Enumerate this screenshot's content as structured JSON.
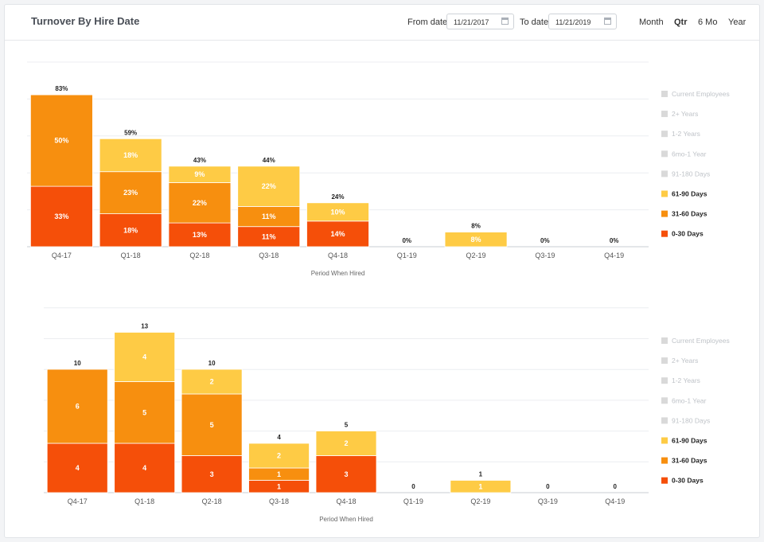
{
  "header": {
    "title": "Turnover By Hire Date",
    "from_label": "From date",
    "from_value": "11/21/2017",
    "to_label": "To date",
    "to_value": "11/21/2019",
    "periods": [
      "Month",
      "Qtr",
      "6 Mo",
      "Year"
    ],
    "active_period": "Qtr"
  },
  "legend": [
    {
      "label": "Current Employees",
      "color": "#d9d9d9",
      "active": false
    },
    {
      "label": "2+ Years",
      "color": "#d9d9d9",
      "active": false
    },
    {
      "label": "1-2 Years",
      "color": "#d9d9d9",
      "active": false
    },
    {
      "label": "6mo-1 Year",
      "color": "#d9d9d9",
      "active": false
    },
    {
      "label": "91-180 Days",
      "color": "#d9d9d9",
      "active": false
    },
    {
      "label": "61-90 Days",
      "color": "#fecb45",
      "active": true
    },
    {
      "label": "31-60 Days",
      "color": "#f78f0f",
      "active": true
    },
    {
      "label": "0-30 Days",
      "color": "#f54f09",
      "active": true
    }
  ],
  "chart_data": [
    {
      "type": "bar",
      "stacked": true,
      "xlabel": "Period When Hired",
      "categories": [
        "Q4-17",
        "Q1-18",
        "Q2-18",
        "Q3-18",
        "Q4-18",
        "Q1-19",
        "Q2-19",
        "Q3-19",
        "Q4-19"
      ],
      "ylim": [
        0,
        100
      ],
      "series": [
        {
          "name": "0-30 Days",
          "color": "#f54f09",
          "values": [
            33,
            18,
            13,
            11,
            14,
            0,
            0,
            0,
            0
          ],
          "labels": [
            "33%",
            "18%",
            "13%",
            "11%",
            "14%",
            "",
            "",
            "",
            ""
          ]
        },
        {
          "name": "31-60 Days",
          "color": "#f78f0f",
          "values": [
            50,
            23,
            22,
            11,
            0,
            0,
            0,
            0,
            0
          ],
          "labels": [
            "50%",
            "23%",
            "22%",
            "11%",
            "",
            "",
            "",
            "",
            ""
          ]
        },
        {
          "name": "61-90 Days",
          "color": "#fecb45",
          "values": [
            0,
            18,
            9,
            22,
            10,
            0,
            8,
            0,
            0
          ],
          "labels": [
            "",
            "18%",
            "9%",
            "22%",
            "10%",
            "",
            "8%",
            "",
            ""
          ]
        }
      ],
      "totals": [
        "83%",
        "59%",
        "43%",
        "44%",
        "24%",
        "0%",
        "8%",
        "0%",
        "0%"
      ]
    },
    {
      "type": "bar",
      "stacked": true,
      "xlabel": "Period When Hired",
      "categories": [
        "Q4-17",
        "Q1-18",
        "Q2-18",
        "Q3-18",
        "Q4-18",
        "Q1-19",
        "Q2-19",
        "Q3-19",
        "Q4-19"
      ],
      "ylim": [
        0,
        16
      ],
      "series": [
        {
          "name": "0-30 Days",
          "color": "#f54f09",
          "values": [
            4,
            4,
            3,
            1,
            3,
            0,
            0,
            0,
            0
          ],
          "labels": [
            "4",
            "4",
            "3",
            "1",
            "3",
            "",
            "",
            "",
            ""
          ]
        },
        {
          "name": "31-60 Days",
          "color": "#f78f0f",
          "values": [
            6,
            5,
            5,
            1,
            0,
            0,
            0,
            0,
            0
          ],
          "labels": [
            "6",
            "5",
            "5",
            "1",
            "",
            "",
            "",
            "",
            ""
          ]
        },
        {
          "name": "61-90 Days",
          "color": "#fecb45",
          "values": [
            0,
            4,
            2,
            2,
            2,
            0,
            1,
            0,
            0
          ],
          "labels": [
            "0",
            "4",
            "2",
            "2",
            "2",
            "",
            "1",
            "",
            ""
          ]
        }
      ],
      "totals": [
        "10",
        "13",
        "10",
        "4",
        "5",
        "0",
        "1",
        "0",
        "0"
      ]
    }
  ]
}
